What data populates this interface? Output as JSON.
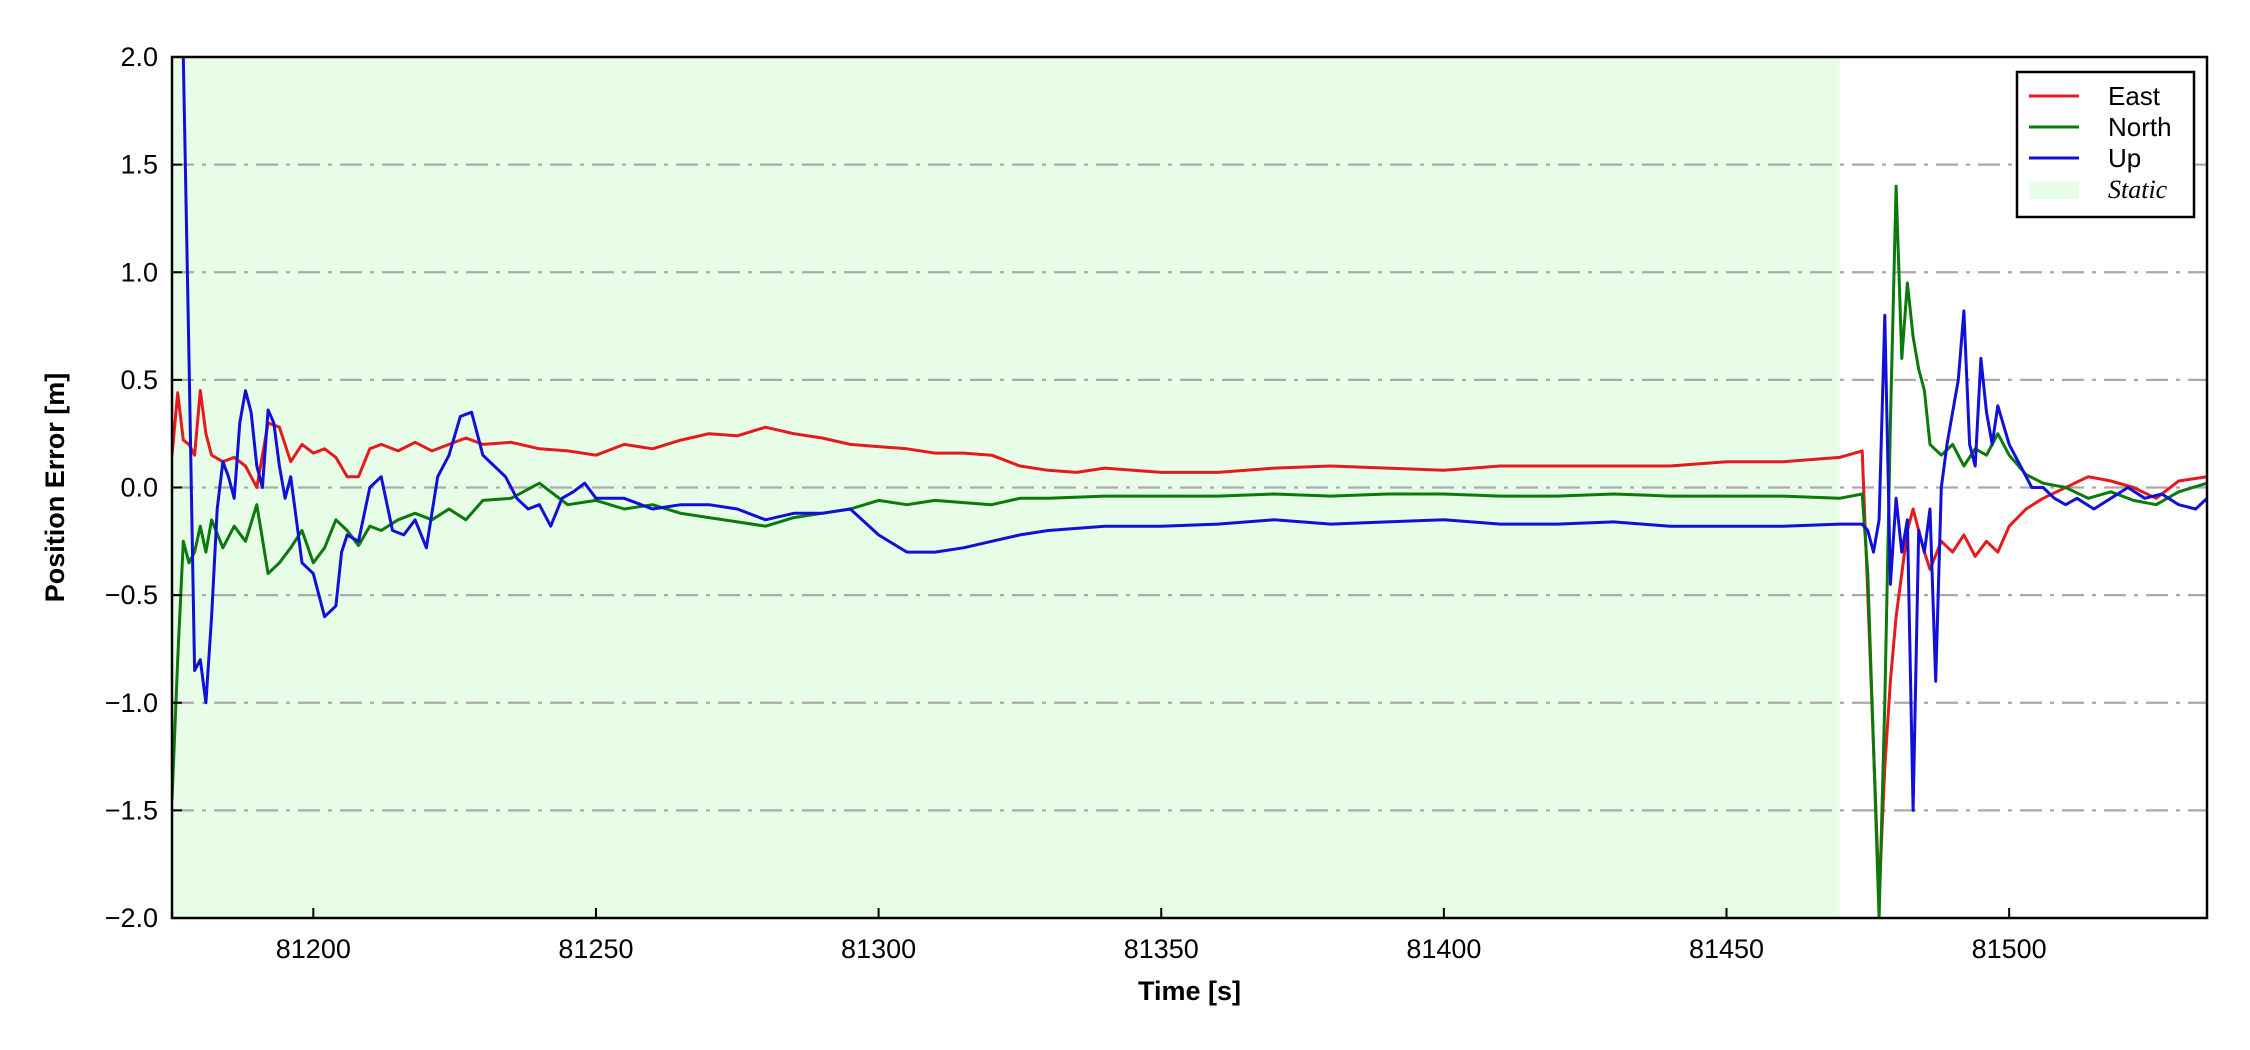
{
  "chart_data": {
    "type": "line",
    "title": "",
    "xlabel": "Time [s]",
    "ylabel": "Position Error [m]",
    "xlim": [
      81175,
      81535
    ],
    "ylim": [
      -2.0,
      2.0
    ],
    "xticks": [
      81200,
      81250,
      81300,
      81350,
      81400,
      81450,
      81500
    ],
    "xtick_labels": [
      "81200",
      "81250",
      "81300",
      "81350",
      "81400",
      "81450",
      "81500"
    ],
    "yticks": [
      -2.0,
      -1.5,
      -1.0,
      -0.5,
      0.0,
      0.5,
      1.0,
      1.5,
      2.0
    ],
    "ytick_labels": [
      "−2.0",
      "−1.5",
      "−1.0",
      "−0.5",
      "0.0",
      "0.5",
      "1.0",
      "1.5",
      "2.0"
    ],
    "grid": "horizontal dash-dot",
    "legend_position": "top-right",
    "static_region": {
      "label": "Static",
      "x_start": 81175,
      "x_end": 81470,
      "color": "#e8fde8"
    },
    "series": [
      {
        "name": "East",
        "color": "#e41a1c",
        "x": [
          81175,
          81176,
          81177,
          81178,
          81179,
          81180,
          81181,
          81182,
          81184,
          81186,
          81188,
          81190,
          81192,
          81194,
          81196,
          81198,
          81200,
          81202,
          81204,
          81206,
          81208,
          81210,
          81212,
          81215,
          81218,
          81221,
          81224,
          81227,
          81230,
          81235,
          81240,
          81245,
          81250,
          81255,
          81260,
          81265,
          81270,
          81275,
          81280,
          81285,
          81290,
          81295,
          81300,
          81305,
          81310,
          81315,
          81320,
          81325,
          81330,
          81335,
          81340,
          81345,
          81350,
          81360,
          81370,
          81380,
          81390,
          81400,
          81410,
          81420,
          81430,
          81440,
          81450,
          81460,
          81470,
          81474,
          81475,
          81476,
          81477,
          81478,
          81479,
          81480,
          81481,
          81482,
          81483,
          81484,
          81485,
          81486,
          81488,
          81490,
          81492,
          81494,
          81496,
          81498,
          81500,
          81503,
          81506,
          81510,
          81514,
          81518,
          81522,
          81526,
          81530,
          81535
        ],
        "y": [
          0.15,
          0.44,
          0.22,
          0.2,
          0.15,
          0.45,
          0.25,
          0.15,
          0.12,
          0.14,
          0.1,
          0.0,
          0.3,
          0.28,
          0.12,
          0.2,
          0.16,
          0.18,
          0.14,
          0.05,
          0.05,
          0.18,
          0.2,
          0.17,
          0.21,
          0.17,
          0.2,
          0.23,
          0.2,
          0.21,
          0.18,
          0.17,
          0.15,
          0.2,
          0.18,
          0.22,
          0.25,
          0.24,
          0.28,
          0.25,
          0.23,
          0.2,
          0.19,
          0.18,
          0.16,
          0.16,
          0.15,
          0.1,
          0.08,
          0.07,
          0.09,
          0.08,
          0.07,
          0.07,
          0.09,
          0.1,
          0.09,
          0.08,
          0.1,
          0.1,
          0.1,
          0.1,
          0.12,
          0.12,
          0.14,
          0.17,
          -0.5,
          -1.2,
          -1.9,
          -1.3,
          -0.9,
          -0.6,
          -0.4,
          -0.2,
          -0.1,
          -0.2,
          -0.3,
          -0.38,
          -0.25,
          -0.3,
          -0.22,
          -0.32,
          -0.25,
          -0.3,
          -0.18,
          -0.1,
          -0.05,
          0.0,
          0.05,
          0.03,
          0.0,
          -0.05,
          0.03,
          0.05
        ]
      },
      {
        "name": "North",
        "color": "#0a7a0a",
        "x": [
          81175,
          81176,
          81177,
          81178,
          81179,
          81180,
          81181,
          81182,
          81184,
          81186,
          81188,
          81190,
          81192,
          81194,
          81196,
          81198,
          81200,
          81202,
          81204,
          81206,
          81208,
          81210,
          81212,
          81215,
          81218,
          81221,
          81224,
          81227,
          81230,
          81235,
          81240,
          81245,
          81250,
          81255,
          81260,
          81265,
          81270,
          81275,
          81280,
          81285,
          81290,
          81295,
          81300,
          81305,
          81310,
          81315,
          81320,
          81325,
          81330,
          81340,
          81350,
          81360,
          81370,
          81380,
          81390,
          81400,
          81410,
          81420,
          81430,
          81440,
          81450,
          81460,
          81470,
          81474,
          81475,
          81476,
          81477,
          81478,
          81479,
          81480,
          81481,
          81482,
          81483,
          81484,
          81485,
          81486,
          81488,
          81490,
          81492,
          81494,
          81496,
          81498,
          81500,
          81503,
          81506,
          81510,
          81514,
          81518,
          81522,
          81526,
          81530,
          81535
        ],
        "y": [
          -1.45,
          -0.8,
          -0.25,
          -0.35,
          -0.3,
          -0.18,
          -0.3,
          -0.15,
          -0.28,
          -0.18,
          -0.25,
          -0.08,
          -0.4,
          -0.35,
          -0.28,
          -0.2,
          -0.35,
          -0.28,
          -0.15,
          -0.2,
          -0.27,
          -0.18,
          -0.2,
          -0.15,
          -0.12,
          -0.15,
          -0.1,
          -0.15,
          -0.06,
          -0.05,
          0.02,
          -0.08,
          -0.06,
          -0.1,
          -0.08,
          -0.12,
          -0.14,
          -0.16,
          -0.18,
          -0.14,
          -0.12,
          -0.1,
          -0.06,
          -0.08,
          -0.06,
          -0.07,
          -0.08,
          -0.05,
          -0.05,
          -0.04,
          -0.04,
          -0.04,
          -0.03,
          -0.04,
          -0.03,
          -0.03,
          -0.04,
          -0.04,
          -0.03,
          -0.04,
          -0.04,
          -0.04,
          -0.05,
          -0.03,
          -0.4,
          -1.2,
          -2.0,
          -1.0,
          0.3,
          1.4,
          0.6,
          0.95,
          0.7,
          0.55,
          0.45,
          0.2,
          0.15,
          0.2,
          0.1,
          0.18,
          0.15,
          0.25,
          0.15,
          0.06,
          0.02,
          0.0,
          -0.05,
          -0.02,
          -0.06,
          -0.08,
          -0.02,
          0.02
        ]
      },
      {
        "name": "Up",
        "color": "#1010d8",
        "x": [
          81177,
          81178,
          81179,
          81180,
          81181,
          81182,
          81183,
          81184,
          81185,
          81186,
          81187,
          81188,
          81189,
          81190,
          81191,
          81192,
          81193,
          81194,
          81195,
          81196,
          81197,
          81198,
          81200,
          81202,
          81204,
          81205,
          81206,
          81208,
          81210,
          81212,
          81214,
          81216,
          81218,
          81220,
          81222,
          81224,
          81226,
          81228,
          81230,
          81232,
          81234,
          81236,
          81238,
          81240,
          81242,
          81244,
          81246,
          81248,
          81250,
          81255,
          81260,
          81265,
          81270,
          81275,
          81280,
          81285,
          81290,
          81295,
          81300,
          81305,
          81310,
          81315,
          81320,
          81325,
          81330,
          81340,
          81350,
          81360,
          81370,
          81380,
          81390,
          81400,
          81410,
          81420,
          81430,
          81440,
          81450,
          81460,
          81470,
          81474,
          81475,
          81476,
          81477,
          81478,
          81479,
          81480,
          81481,
          81482,
          81483,
          81484,
          81485,
          81486,
          81487,
          81488,
          81489,
          81490,
          81491,
          81492,
          81493,
          81494,
          81495,
          81496,
          81497,
          81498,
          81500,
          81502,
          81504,
          81506,
          81508,
          81510,
          81512,
          81515,
          81518,
          81521,
          81524,
          81527,
          81530,
          81533,
          81535
        ],
        "y": [
          2.0,
          0.6,
          -0.85,
          -0.8,
          -1.0,
          -0.6,
          -0.1,
          0.12,
          0.05,
          -0.05,
          0.3,
          0.45,
          0.35,
          0.1,
          0.0,
          0.36,
          0.3,
          0.1,
          -0.05,
          0.05,
          -0.15,
          -0.35,
          -0.4,
          -0.6,
          -0.55,
          -0.3,
          -0.22,
          -0.25,
          0.0,
          0.05,
          -0.2,
          -0.22,
          -0.15,
          -0.28,
          0.05,
          0.15,
          0.33,
          0.35,
          0.15,
          0.1,
          0.05,
          -0.05,
          -0.1,
          -0.08,
          -0.18,
          -0.05,
          -0.02,
          0.02,
          -0.05,
          -0.05,
          -0.1,
          -0.08,
          -0.08,
          -0.1,
          -0.15,
          -0.12,
          -0.12,
          -0.1,
          -0.22,
          -0.3,
          -0.3,
          -0.28,
          -0.25,
          -0.22,
          -0.2,
          -0.18,
          -0.18,
          -0.17,
          -0.15,
          -0.17,
          -0.16,
          -0.15,
          -0.17,
          -0.17,
          -0.16,
          -0.18,
          -0.18,
          -0.18,
          -0.17,
          -0.17,
          -0.2,
          -0.3,
          -0.15,
          0.8,
          -0.45,
          -0.05,
          -0.3,
          -0.15,
          -1.5,
          -0.2,
          -0.3,
          -0.1,
          -0.9,
          0.0,
          0.2,
          0.35,
          0.5,
          0.82,
          0.2,
          0.1,
          0.6,
          0.35,
          0.2,
          0.38,
          0.2,
          0.1,
          0.0,
          0.0,
          -0.05,
          -0.08,
          -0.05,
          -0.1,
          -0.05,
          0.0,
          -0.05,
          -0.03,
          -0.08,
          -0.1,
          -0.05
        ]
      }
    ]
  }
}
